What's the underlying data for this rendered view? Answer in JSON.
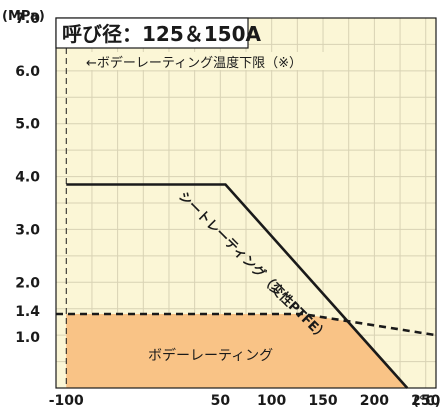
{
  "chart_data": {
    "type": "line",
    "title": "呼び径：125＆150A",
    "ylabel": "(MPa)",
    "xlabel_unit": "(℃)",
    "xlim": [
      -110,
      260
    ],
    "ylim": [
      0,
      7.0
    ],
    "grid": true,
    "x_ticks": [
      -100,
      50,
      100,
      150,
      200,
      250
    ],
    "x_tick_labels": [
      "-100",
      "50",
      "100",
      "150",
      "200",
      "250"
    ],
    "y_ticks": [
      1.0,
      1.4,
      2.0,
      3.0,
      4.0,
      5.0,
      6.0,
      7.0
    ],
    "y_tick_labels": [
      "1.0",
      "1.4",
      "2.0",
      "3.0",
      "4.0",
      "5.0",
      "6.0",
      "7.0"
    ],
    "annotations": {
      "body_low_limit": "ボデーレーティング温度下限（※）",
      "seat_rating": "シートレーティング（変性PTFE）",
      "body_rating": "ボデーレーティング"
    },
    "body_low_limit_x": -100,
    "series": [
      {
        "name": "シートレーティング（変性PTFE）",
        "style": "solid",
        "x": [
          -100,
          55,
          232
        ],
        "y": [
          3.85,
          3.85,
          0
        ]
      },
      {
        "name": "ボデーレーティング",
        "style": "dashed",
        "x": [
          -110,
          130,
          260
        ],
        "y": [
          1.4,
          1.4,
          1.0
        ]
      }
    ],
    "colors": {
      "plot_bg": "#fbf6d6",
      "grid": "#d8d2b4",
      "fill": "#f9c386",
      "line": "#1a1a1a"
    }
  }
}
